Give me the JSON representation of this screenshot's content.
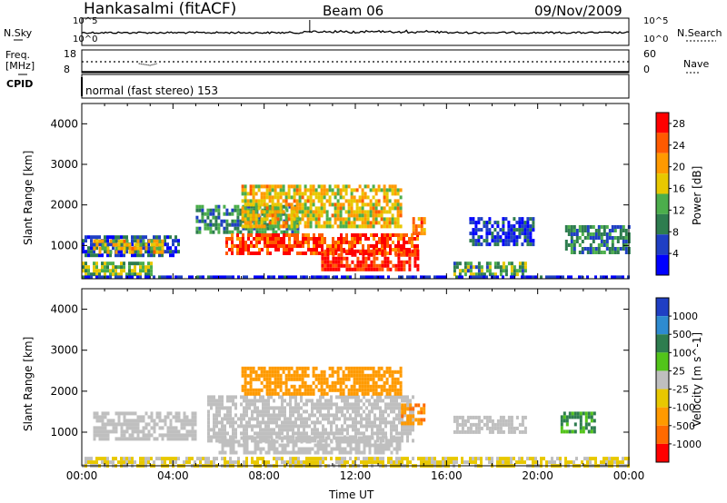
{
  "header": {
    "station": "Hankasalmi (fitACF)",
    "beam": "Beam 06",
    "date": "09/Nov/2009"
  },
  "top_panels": {
    "nsky_label": "N.Sky",
    "nsearch_label": "N.Search",
    "freq_label_1": "Freq.",
    "freq_label_2": "[MHz]",
    "nave_label": "Nave",
    "cpid_label": "CPID",
    "cpid_value": "normal (fast stereo) 153",
    "nsky_ticks": [
      "10^5",
      "10^0"
    ],
    "nsearch_ticks": [
      "10^5",
      "10^0"
    ],
    "freq_ticks": [
      "18",
      "8"
    ],
    "nave_ticks": [
      "60",
      "0"
    ]
  },
  "colors": {
    "power_scale": [
      "#0000ff",
      "#1f3fc4",
      "#2e7d4f",
      "#4cae4c",
      "#e8c800",
      "#ff9a00",
      "#ff5a00",
      "#ff0000"
    ],
    "velocity_scale": [
      "#1f3fc4",
      "#2e8bd0",
      "#2e7d4f",
      "#52c41a",
      "#bfbfbf",
      "#e8c800",
      "#ff9a00",
      "#ff6a00",
      "#ff0000"
    ]
  },
  "chart_data": [
    {
      "type": "heatmap",
      "title": "Power",
      "xlabel": "Time UT",
      "ylabel": "Slant Range [km]",
      "x_ticks": [
        "00:00",
        "04:00",
        "08:00",
        "12:00",
        "16:00",
        "20:00",
        "00:00"
      ],
      "y_ticks": [
        "1000",
        "2000",
        "3000",
        "4000"
      ],
      "ylim": [
        180,
        4500
      ],
      "colorbar": {
        "label": "Power [dB]",
        "ticks": [
          "4",
          "8",
          "12",
          "16",
          "20",
          "24",
          "28"
        ],
        "range": [
          0,
          30
        ]
      },
      "regions": [
        {
          "t0": 0.0,
          "t1": 4.2,
          "r0": 800,
          "r1": 1250,
          "level": 6
        },
        {
          "t0": 0.5,
          "t1": 3.5,
          "r0": 850,
          "r1": 1150,
          "level": 18
        },
        {
          "t0": 0.0,
          "t1": 3.0,
          "r0": 300,
          "r1": 600,
          "level": 14
        },
        {
          "t0": 5.0,
          "t1": 9.5,
          "r0": 1300,
          "r1": 2000,
          "level": 10
        },
        {
          "t0": 6.3,
          "t1": 14.7,
          "r0": 800,
          "r1": 1300,
          "level": 26
        },
        {
          "t0": 7.0,
          "t1": 14.0,
          "r0": 1500,
          "r1": 2500,
          "level": 18
        },
        {
          "t0": 10.5,
          "t1": 14.8,
          "r0": 400,
          "r1": 900,
          "level": 28
        },
        {
          "t0": 14.5,
          "t1": 15.0,
          "r0": 1300,
          "r1": 1700,
          "level": 22
        },
        {
          "t0": 16.3,
          "t1": 19.5,
          "r0": 250,
          "r1": 600,
          "level": 12
        },
        {
          "t0": 17.0,
          "t1": 19.8,
          "r0": 1000,
          "r1": 1700,
          "level": 5
        },
        {
          "t0": 21.2,
          "t1": 24.0,
          "r0": 800,
          "r1": 1500,
          "level": 9
        },
        {
          "t0": 0.0,
          "t1": 24.0,
          "r0": 180,
          "r1": 260,
          "level": 3
        }
      ]
    },
    {
      "type": "heatmap",
      "title": "Velocity",
      "xlabel": "Time UT",
      "ylabel": "Slant Range [km]",
      "x_ticks": [
        "00:00",
        "04:00",
        "08:00",
        "12:00",
        "16:00",
        "20:00",
        "00:00"
      ],
      "y_ticks": [
        "1000",
        "2000",
        "3000",
        "4000"
      ],
      "ylim": [
        180,
        4500
      ],
      "colorbar": {
        "label": "Velocity [m s^-1]",
        "ticks": [
          "1000",
          "500",
          "100",
          "25",
          "-25",
          "-100",
          "-500",
          "-1000"
        ]
      },
      "regions": [
        {
          "t0": 0.5,
          "t1": 5.0,
          "r0": 800,
          "r1": 1500,
          "vel": 0
        },
        {
          "t0": 5.5,
          "t1": 14.5,
          "r0": 800,
          "r1": 1900,
          "vel": 0
        },
        {
          "t0": 7.0,
          "t1": 14.0,
          "r0": 1900,
          "r1": 2600,
          "vel": -300
        },
        {
          "t0": 14.0,
          "t1": 15.0,
          "r0": 1200,
          "r1": 1700,
          "vel": -400
        },
        {
          "t0": 6.0,
          "t1": 14.0,
          "r0": 500,
          "r1": 900,
          "vel": 0
        },
        {
          "t0": 16.3,
          "t1": 19.5,
          "r0": 1000,
          "r1": 1400,
          "vel": 0
        },
        {
          "t0": 21.0,
          "t1": 22.5,
          "r0": 1000,
          "r1": 1500,
          "vel": 120
        },
        {
          "t0": 0.0,
          "t1": 24.0,
          "r0": 180,
          "r1": 400,
          "vel": -30
        }
      ]
    }
  ],
  "time_axis_label": "Time UT"
}
